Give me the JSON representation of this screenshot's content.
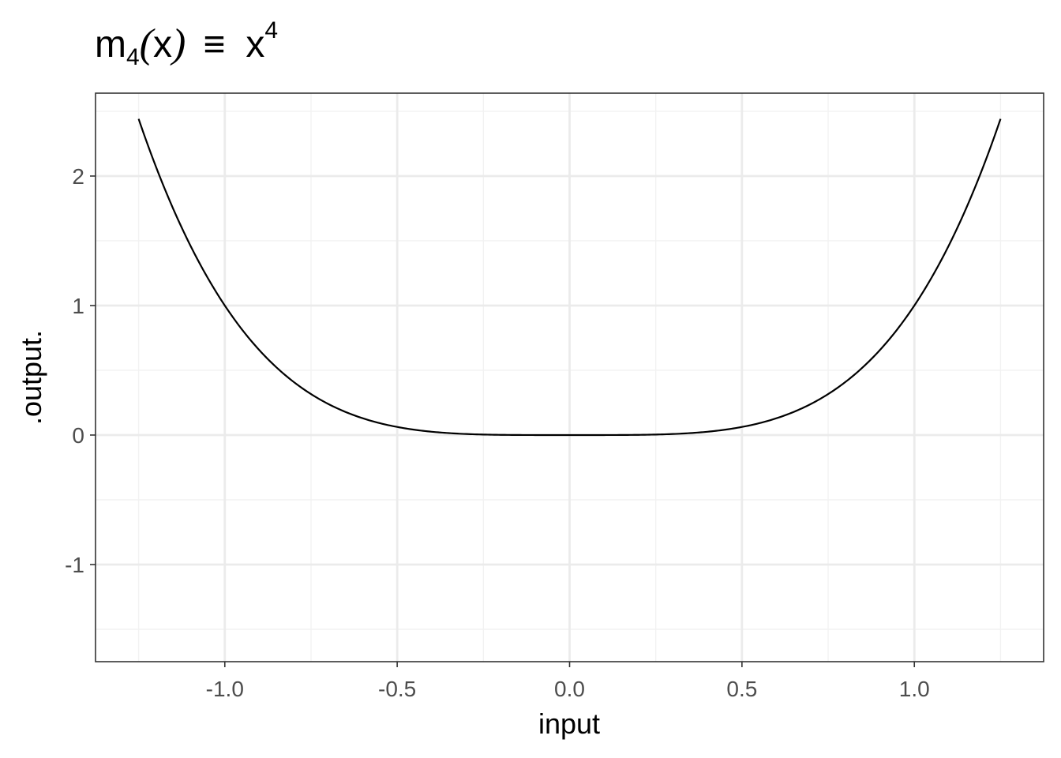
{
  "chart_data": {
    "type": "line",
    "title": {
      "function": "m",
      "subscript": "4",
      "argument": "x",
      "symbol": "≡",
      "base": "x",
      "superscript": "4"
    },
    "xlabel": "input",
    "ylabel": ".output.",
    "xlim": [
      -1.375,
      1.375
    ],
    "ylim": [
      -1.75,
      2.64
    ],
    "x_ticks": [
      -1.0,
      -0.5,
      0.0,
      0.5,
      1.0
    ],
    "x_tick_labels": [
      "-1.0",
      "-0.5",
      "0.0",
      "0.5",
      "1.0"
    ],
    "y_ticks": [
      -1,
      0,
      1,
      2
    ],
    "y_tick_labels": [
      "-1",
      "0",
      "1",
      "2"
    ],
    "x_minor_ticks": [
      -1.25,
      -0.75,
      -0.25,
      0.25,
      0.75,
      1.25
    ],
    "y_minor_ticks": [
      -1.5,
      -0.5,
      0.5,
      1.5,
      2.5
    ],
    "grid": true,
    "series": [
      {
        "function": "x^4",
        "x_range": [
          -1.25,
          1.25
        ],
        "color": "#000000"
      }
    ],
    "colors": {
      "grid_major": "#ebebeb",
      "grid_minor": "#f2f2f2",
      "panel_border": "#333333",
      "tick_label": "#4d4d4d"
    }
  }
}
